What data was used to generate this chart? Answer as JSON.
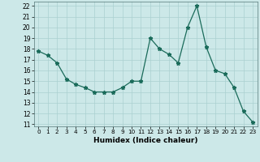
{
  "x": [
    0,
    1,
    2,
    3,
    4,
    5,
    6,
    7,
    8,
    9,
    10,
    11,
    12,
    13,
    14,
    15,
    16,
    17,
    18,
    19,
    20,
    21,
    22,
    23
  ],
  "y": [
    17.8,
    17.4,
    16.7,
    15.2,
    14.7,
    14.4,
    14.0,
    14.0,
    14.0,
    14.4,
    15.0,
    15.0,
    19.0,
    18.0,
    17.5,
    16.7,
    20.0,
    22.0,
    18.2,
    16.0,
    15.7,
    14.4,
    12.2,
    11.2
  ],
  "line_color": "#1a6b5a",
  "marker": "*",
  "bg_color": "#cce8e8",
  "grid_color": "#aad0d0",
  "xlabel": "Humidex (Indice chaleur)",
  "ylim_min": 10.8,
  "ylim_max": 22.4,
  "xlim_min": -0.5,
  "xlim_max": 23.5,
  "yticks": [
    11,
    12,
    13,
    14,
    15,
    16,
    17,
    18,
    19,
    20,
    21,
    22
  ],
  "xticks": [
    0,
    1,
    2,
    3,
    4,
    5,
    6,
    7,
    8,
    9,
    10,
    11,
    12,
    13,
    14,
    15,
    16,
    17,
    18,
    19,
    20,
    21,
    22,
    23
  ]
}
